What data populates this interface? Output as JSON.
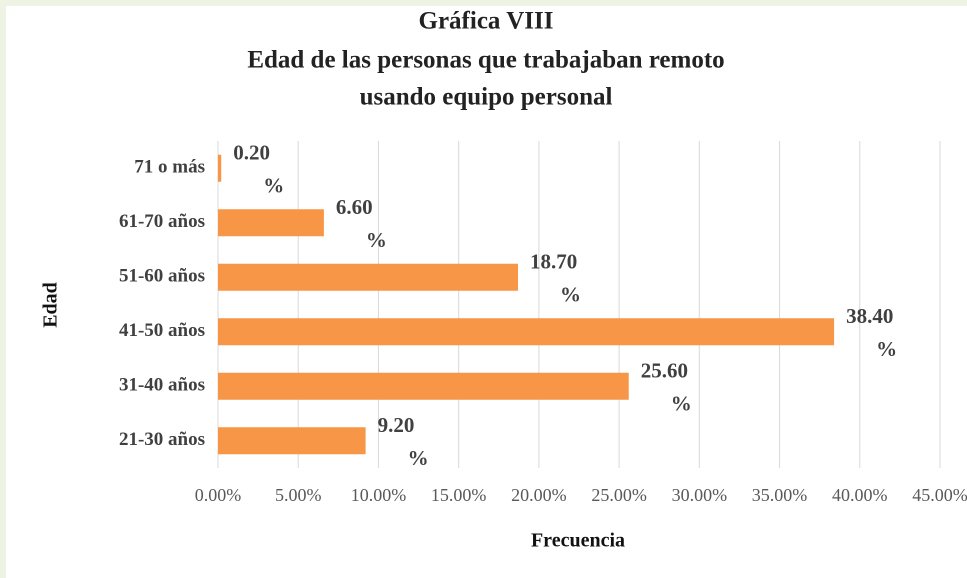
{
  "chart_data": {
    "type": "barh",
    "title": [
      "Gráfica VIII",
      "Edad de las personas que trabajaban remoto",
      "usando equipo personal"
    ],
    "x_label": "Frecuencia",
    "y_label": "Edad",
    "categories": [
      "21-30 años",
      "31-40 años",
      "41-50 años",
      "51-60 años",
      "61-70 años",
      "71 o más"
    ],
    "values": [
      9.2,
      25.6,
      38.4,
      18.7,
      6.6,
      0.2
    ],
    "value_labels": [
      "9.20 %",
      "25.60 %",
      "38.40 %",
      "18.70 %",
      "6.60 %",
      "0.20 %"
    ],
    "color": "#f79646",
    "xlim": [
      0,
      45
    ],
    "xticks": [
      {
        "value": 0,
        "label": "0.00%"
      },
      {
        "value": 5,
        "label": "5.00%"
      },
      {
        "value": 10,
        "label": "10.00%"
      },
      {
        "value": 15,
        "label": "15.00%"
      },
      {
        "value": 20,
        "label": "20.00%"
      },
      {
        "value": 25,
        "label": "25.00%"
      },
      {
        "value": 30,
        "label": "30.00%"
      },
      {
        "value": 35,
        "label": "35.00%"
      },
      {
        "value": 40,
        "label": "40.00%"
      },
      {
        "value": 45,
        "label": "45.00%"
      }
    ],
    "grid": true
  }
}
